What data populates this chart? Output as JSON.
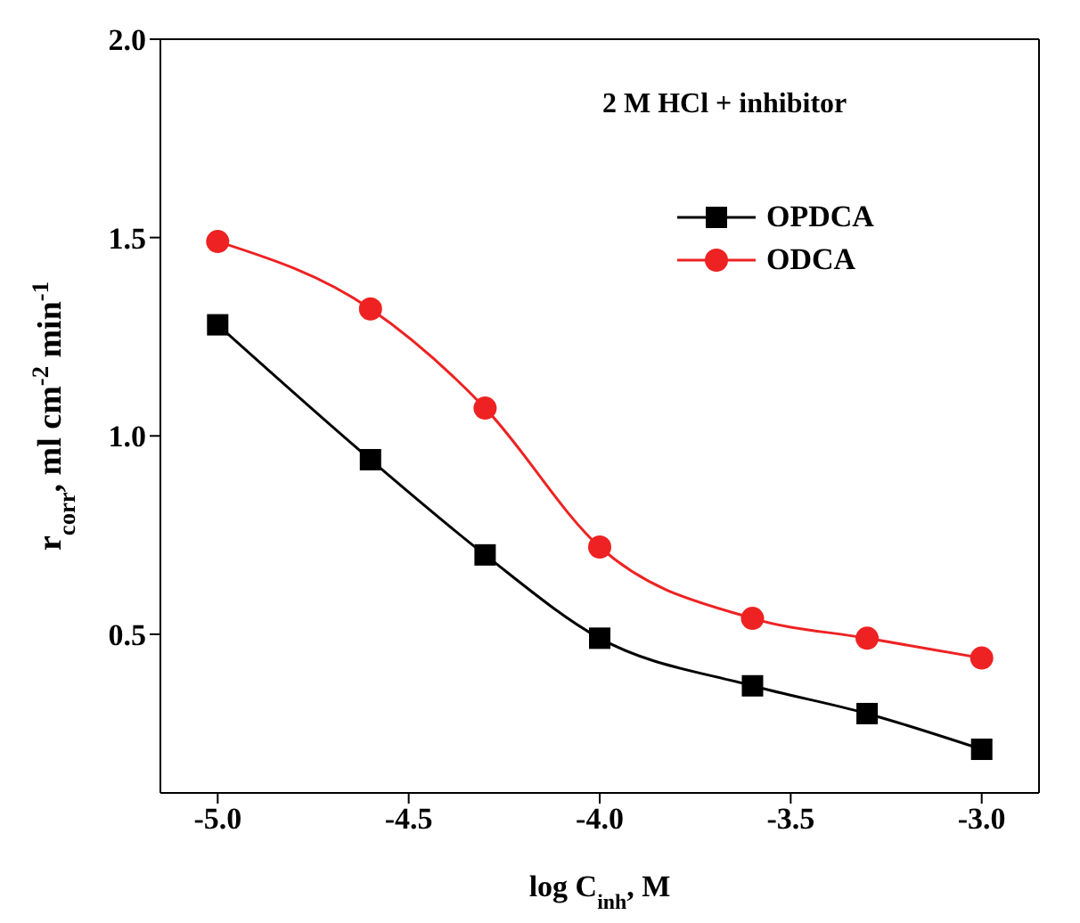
{
  "chart_data": {
    "type": "line",
    "xlabel": "log C$_{inh}$, M",
    "ylabel": "r$_{corr}$, ml cm$^{-2}$ min$^{-1}$",
    "annotations": [
      "2 M HCl + inhibitor"
    ],
    "x": [
      -5.0,
      -4.6,
      -4.3,
      -4.0,
      -3.6,
      -3.3,
      -3.0
    ],
    "series": [
      {
        "name": "OPDCA",
        "color": "#000000",
        "marker": "square",
        "values": [
          1.28,
          0.94,
          0.7,
          0.49,
          0.37,
          0.3,
          0.21
        ]
      },
      {
        "name": "ODCA",
        "color": "#ee2222",
        "marker": "circle",
        "values": [
          1.49,
          1.32,
          1.07,
          0.72,
          0.54,
          0.49,
          0.44
        ]
      }
    ],
    "xlim": [
      -5.15,
      -2.85
    ],
    "xticks": [
      {
        "value": -5.0,
        "label": "-5.0"
      },
      -4.5,
      {
        "value": -4.0,
        "label": "-4.0"
      },
      -3.5,
      {
        "value": -3.0,
        "label": "-3.0"
      }
    ],
    "ylim": [
      0.1,
      2.0
    ],
    "yticks": [
      0.5,
      {
        "value": 1.0,
        "label": "1.0"
      },
      1.5,
      {
        "value": 2.0,
        "label": "2.0"
      }
    ],
    "grid": false,
    "legend": "top right",
    "line_style": "solid"
  }
}
